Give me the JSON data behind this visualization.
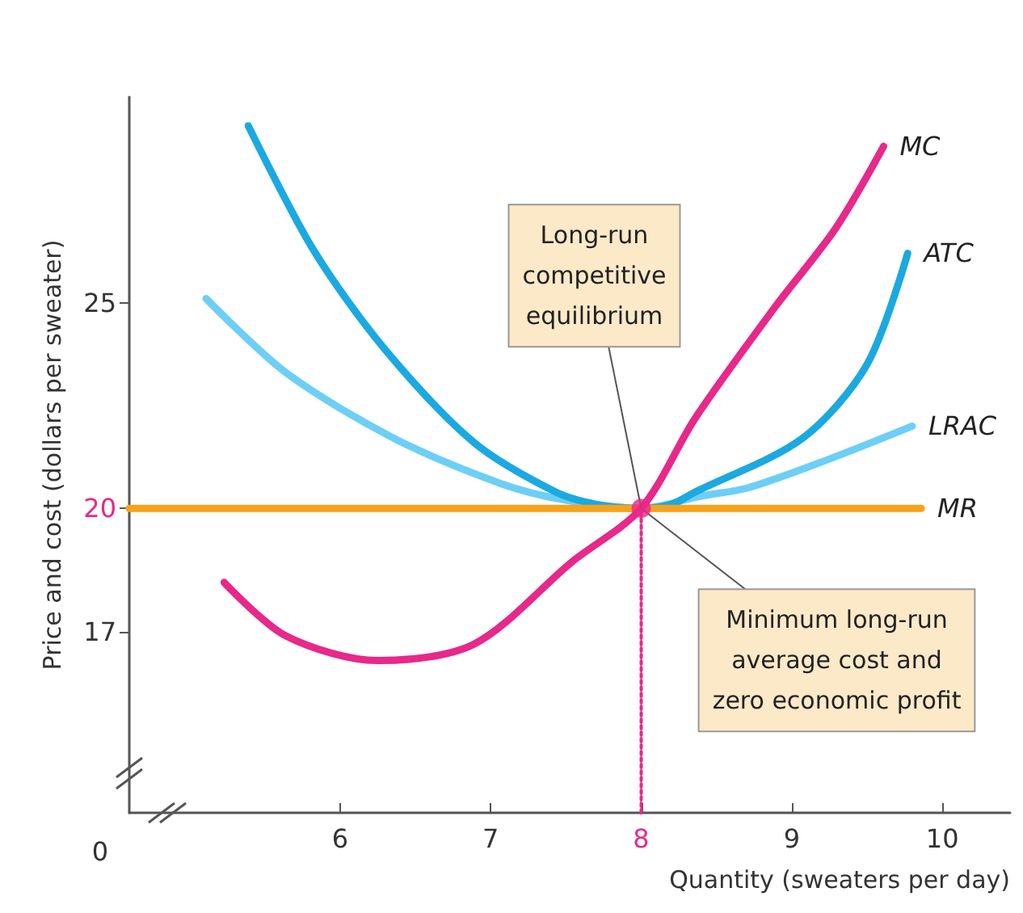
{
  "chart_data": {
    "type": "line",
    "xlabel": "Quantity (sweaters per day)",
    "ylabel": "Price and cost (dollars per sweater)",
    "xlim": [
      4.6,
      10.45
    ],
    "ylim": [
      12.6,
      30
    ],
    "xticks": [
      6,
      7,
      8,
      9,
      10
    ],
    "yticks": [
      17,
      20,
      25
    ],
    "grid": false,
    "legend": false,
    "marker": "none",
    "line_style": "solid",
    "series": [
      {
        "name": "LRAC",
        "color": "#6dcff6",
        "x": [
          5.11,
          5.64,
          6.36,
          7.07,
          7.5,
          8,
          8.4,
          8.71,
          9.25,
          9.8
        ],
        "values": [
          25.1,
          23.3,
          21.7,
          20.6,
          20.2,
          20,
          20.3,
          20.5,
          21.2,
          22.0
        ]
      },
      {
        "name": "ATC",
        "color": "#1ba9e1",
        "x": [
          5.39,
          5.82,
          6.29,
          6.89,
          7.43,
          7.7,
          8,
          8.2,
          8.36,
          9.07,
          9.5,
          9.77
        ],
        "values": [
          29.3,
          26.3,
          23.9,
          21.6,
          20.4,
          20.1,
          20,
          20.1,
          20.4,
          21.7,
          23.5,
          26.2
        ]
      },
      {
        "name": "MR",
        "color": "#f7a21b",
        "x": [
          4.6,
          9.86
        ],
        "values": [
          20,
          20
        ]
      },
      {
        "name": "MC",
        "color": "#e8288a",
        "x": [
          5.23,
          5.64,
          6.25,
          6.89,
          7.54,
          8,
          8.36,
          8.89,
          9.29,
          9.61
        ],
        "values": [
          18.2,
          16.9,
          16.3,
          16.7,
          18.7,
          20,
          22.2,
          24.9,
          26.8,
          28.8
        ]
      },
      {
        "type": "line",
        "color": "#e8288a",
        "line_style": "dotted",
        "x": [
          8,
          8
        ],
        "values": [
          12.6,
          20
        ]
      },
      {
        "type": "scatter",
        "color": "#e8288a",
        "marker": "circle",
        "x": [
          8
        ],
        "values": [
          20
        ]
      }
    ],
    "annotations": [
      {
        "text": "Long-run\ncompetitive\nequilibrium",
        "x": 8,
        "y": 20
      },
      {
        "text": "Minimum long-run\naverage cost and\nzero economic profit",
        "x": 8,
        "y": 20
      },
      "0"
    ]
  }
}
